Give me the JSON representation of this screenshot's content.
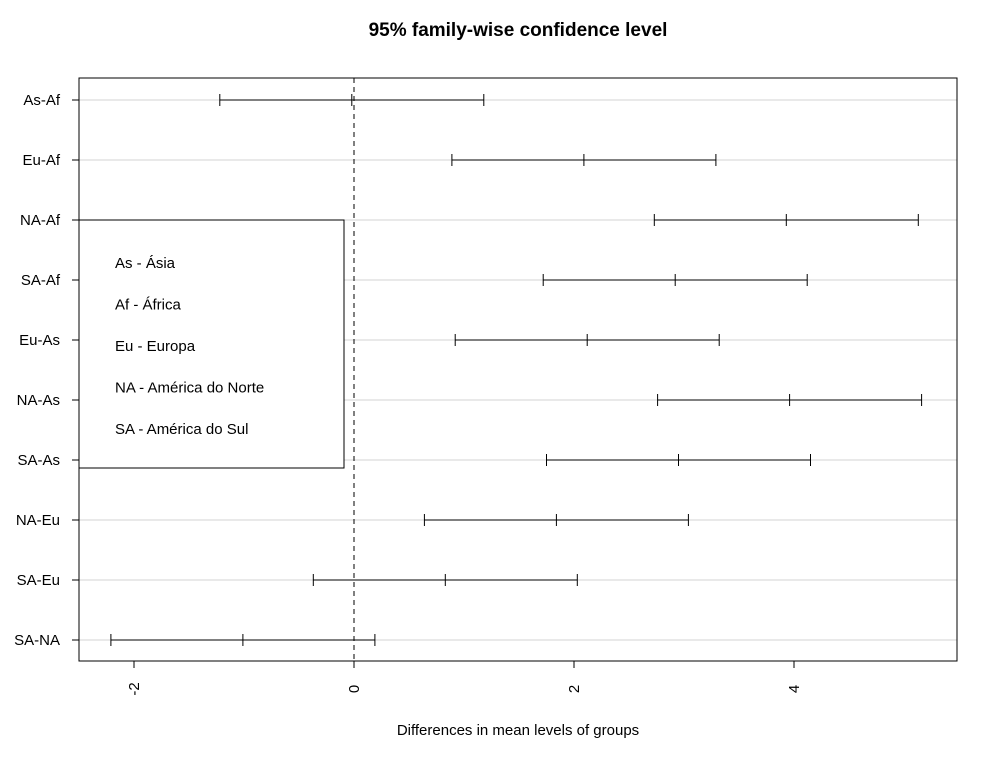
{
  "chart_data": {
    "type": "errorbar",
    "title": "95% family-wise confidence level",
    "xlabel": "Differences in mean levels of groups",
    "ylabel": "",
    "xlim": [
      -2.5,
      5.5
    ],
    "x_ticks": [
      -2,
      0,
      2,
      4
    ],
    "reference_line": 0,
    "grid": "horizontal",
    "comparisons": [
      {
        "label": "As-Af",
        "lwr": -1.22,
        "diff": -0.02,
        "upr": 1.18
      },
      {
        "label": "Eu-Af",
        "lwr": 0.89,
        "diff": 2.09,
        "upr": 3.29
      },
      {
        "label": "NA-Af",
        "lwr": 2.73,
        "diff": 3.93,
        "upr": 5.13
      },
      {
        "label": "SA-Af",
        "lwr": 1.72,
        "diff": 2.92,
        "upr": 4.12
      },
      {
        "label": "Eu-As",
        "lwr": 0.92,
        "diff": 2.12,
        "upr": 3.32
      },
      {
        "label": "NA-As",
        "lwr": 2.76,
        "diff": 3.96,
        "upr": 5.16
      },
      {
        "label": "SA-As",
        "lwr": 1.75,
        "diff": 2.95,
        "upr": 4.15
      },
      {
        "label": "NA-Eu",
        "lwr": 0.64,
        "diff": 1.84,
        "upr": 3.04
      },
      {
        "label": "SA-Eu",
        "lwr": -0.37,
        "diff": 0.83,
        "upr": 2.03
      },
      {
        "label": "SA-NA",
        "lwr": -2.21,
        "diff": -1.01,
        "upr": 0.19
      }
    ],
    "legend": {
      "placement": "left",
      "entries": [
        "As - Ásia",
        "Af - África",
        "Eu - Europa",
        "NA - América do Norte",
        "SA - América do Sul"
      ]
    }
  }
}
